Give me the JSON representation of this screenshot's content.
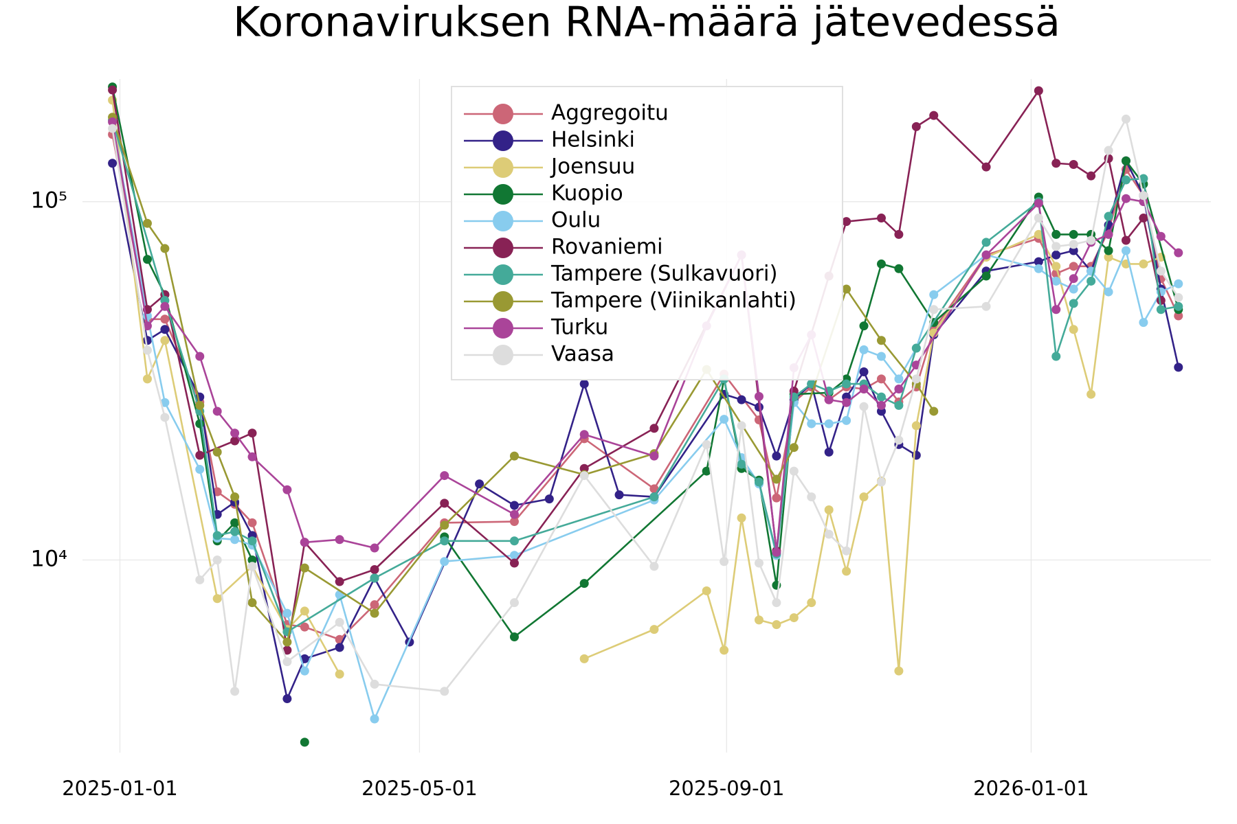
{
  "chart_data": {
    "type": "line",
    "title": "Koronaviruksen RNA-määrä jätevedessä",
    "xlim": [
      "2024-12-17",
      "2026-03-14"
    ],
    "xticks": [
      "2025-01-01",
      "2025-05-01",
      "2025-09-01",
      "2026-01-01"
    ],
    "ylim": [
      2900,
      220000
    ],
    "log_y": true,
    "yticks": [
      {
        "value": 10000,
        "label": "10⁴"
      },
      {
        "value": 100000,
        "label": "10⁵"
      }
    ],
    "grid": true,
    "legend": "top",
    "series": [
      {
        "name": "Aggregoitu",
        "color": "#cc6677",
        "x": [
          "2024-12-29",
          "2025-01-12",
          "2025-01-19",
          "2025-02-02",
          "2025-02-09",
          "2025-02-16",
          "2025-02-23",
          "2025-03-09",
          "2025-03-16",
          "2025-03-30",
          "2025-04-13",
          "2025-05-11",
          "2025-06-08",
          "2025-07-06",
          "2025-08-03",
          "2025-08-31",
          "2025-09-14",
          "2025-09-21",
          "2025-09-28",
          "2025-10-05",
          "2025-10-12",
          "2025-10-19",
          "2025-10-26",
          "2025-11-02",
          "2025-11-09",
          "2025-11-16",
          "2025-11-23",
          "2025-12-14",
          "2026-01-04",
          "2026-01-11",
          "2026-01-18",
          "2026-01-25",
          "2026-02-01",
          "2026-02-08",
          "2026-02-15",
          "2026-02-22",
          "2026-03-01"
        ],
        "values": [
          154000,
          47000,
          47000,
          27600,
          15500,
          14300,
          12700,
          6600,
          6500,
          6000,
          7500,
          12700,
          12800,
          21800,
          15800,
          33000,
          24600,
          14900,
          27600,
          30400,
          28000,
          30400,
          30000,
          32000,
          27600,
          30400,
          44000,
          71000,
          79000,
          63000,
          66000,
          66000,
          83000,
          123000,
          104000,
          61000,
          48000
        ]
      },
      {
        "name": "Helsinki",
        "color": "#332288",
        "x": [
          "2024-12-29",
          "2025-01-12",
          "2025-01-19",
          "2025-02-02",
          "2025-02-09",
          "2025-02-16",
          "2025-02-23",
          "2025-03-09",
          "2025-03-16",
          "2025-03-30",
          "2025-04-13",
          "2025-04-27",
          "2025-05-25",
          "2025-06-08",
          "2025-06-22",
          "2025-07-06",
          "2025-07-20",
          "2025-08-03",
          "2025-08-31",
          "2025-09-07",
          "2025-09-14",
          "2025-09-21",
          "2025-09-28",
          "2025-10-05",
          "2025-10-12",
          "2025-10-19",
          "2025-10-26",
          "2025-11-02",
          "2025-11-09",
          "2025-11-16",
          "2025-11-23",
          "2025-12-14",
          "2026-01-04",
          "2026-01-11",
          "2026-01-18",
          "2026-01-25",
          "2026-02-01",
          "2026-02-08",
          "2026-02-15",
          "2026-02-22",
          "2026-03-01"
        ],
        "values": [
          128000,
          41000,
          44000,
          28500,
          13400,
          14500,
          11700,
          4100,
          5300,
          5700,
          8900,
          5900,
          16300,
          14200,
          14800,
          31000,
          15200,
          15000,
          29000,
          28000,
          26700,
          19500,
          28000,
          31000,
          20000,
          28500,
          33500,
          26000,
          21000,
          19600,
          42500,
          64000,
          68000,
          71000,
          73000,
          64000,
          86000,
          130000,
          104000,
          57000,
          34500
        ]
      },
      {
        "name": "Joensuu",
        "color": "#ddcc77",
        "x": [
          "2024-12-29",
          "2025-01-12",
          "2025-01-19",
          "2025-02-09",
          "2025-02-23",
          "2025-03-09",
          "2025-03-16",
          "2025-03-30",
          "2025-04-13",
          "2025-07-06",
          "2025-08-03",
          "2025-08-24",
          "2025-08-31",
          "2025-09-07",
          "2025-09-14",
          "2025-09-21",
          "2025-09-28",
          "2025-10-05",
          "2025-10-12",
          "2025-10-19",
          "2025-10-26",
          "2025-11-02",
          "2025-11-09",
          "2025-11-16",
          "2025-11-23",
          "2025-12-14",
          "2026-01-04",
          "2026-01-11",
          "2026-01-18",
          "2026-01-25",
          "2026-02-01",
          "2026-02-08",
          "2026-02-15",
          "2026-02-22"
        ],
        "values": [
          192000,
          32000,
          41000,
          7800,
          9600,
          6400,
          7200,
          4800,
          null,
          5300,
          6400,
          8200,
          5600,
          13100,
          6800,
          6600,
          6900,
          7600,
          13800,
          9300,
          15000,
          16600,
          4900,
          23700,
          43000,
          70000,
          81000,
          66000,
          44000,
          29000,
          70000,
          67000,
          67000,
          70000
        ]
      },
      {
        "name": "Kuopio",
        "color": "#117733",
        "x": [
          "2024-12-29",
          "2025-01-12",
          "2025-01-19",
          "2025-02-02",
          "2025-02-09",
          "2025-02-16",
          "2025-02-23",
          "2025-03-02",
          "2025-03-16",
          "2025-03-30",
          "2025-05-11",
          "2025-06-08",
          "2025-07-06",
          "2025-08-24",
          "2025-08-31",
          "2025-09-07",
          "2025-09-14",
          "2025-09-21",
          "2025-09-28",
          "2025-10-12",
          "2025-10-19",
          "2025-10-26",
          "2025-11-02",
          "2025-11-09",
          "2025-11-23",
          "2025-12-14",
          "2026-01-04",
          "2026-01-11",
          "2026-01-18",
          "2026-01-25",
          "2026-02-01",
          "2026-02-08",
          "2026-02-15",
          "2026-03-01"
        ],
        "values": [
          209000,
          69000,
          55000,
          24000,
          11300,
          12700,
          10000,
          null,
          3100,
          null,
          11600,
          6100,
          8600,
          17700,
          32000,
          18000,
          16700,
          8500,
          29000,
          29300,
          32000,
          45000,
          67000,
          65000,
          46000,
          62000,
          103000,
          81000,
          81000,
          81000,
          73000,
          130000,
          112000,
          50000
        ]
      },
      {
        "name": "Oulu",
        "color": "#88ccee",
        "x": [
          "2024-12-29",
          "2025-01-12",
          "2025-01-19",
          "2025-02-02",
          "2025-02-09",
          "2025-02-16",
          "2025-02-23",
          "2025-03-09",
          "2025-03-16",
          "2025-03-30",
          "2025-04-13",
          "2025-05-11",
          "2025-06-08",
          "2025-08-03",
          "2025-08-31",
          "2025-09-07",
          "2025-09-14",
          "2025-09-21",
          "2025-09-28",
          "2025-10-05",
          "2025-10-12",
          "2025-10-19",
          "2025-10-26",
          "2025-11-02",
          "2025-11-09",
          "2025-11-16",
          "2025-11-23",
          "2025-12-14",
          "2026-01-04",
          "2026-01-11",
          "2026-01-18",
          "2026-01-25",
          "2026-02-01",
          "2026-02-08",
          "2026-02-15",
          "2026-02-22",
          "2026-03-01"
        ],
        "values": [
          168000,
          48000,
          27500,
          17900,
          11500,
          11400,
          11000,
          7100,
          4900,
          8000,
          3600,
          9900,
          10300,
          14700,
          24700,
          19300,
          16300,
          10300,
          27500,
          24000,
          24000,
          24500,
          38600,
          37000,
          32000,
          39000,
          55000,
          71000,
          65000,
          60000,
          57000,
          64000,
          56000,
          73000,
          46000,
          56000,
          59000
        ]
      },
      {
        "name": "Rovaniemi",
        "color": "#882255",
        "x": [
          "2024-12-29",
          "2025-01-12",
          "2025-01-19",
          "2025-02-02",
          "2025-02-16",
          "2025-02-23",
          "2025-03-09",
          "2025-03-16",
          "2025-03-30",
          "2025-04-13",
          "2025-05-11",
          "2025-06-08",
          "2025-07-06",
          "2025-08-03",
          "2025-09-07",
          "2025-09-21",
          "2025-09-28",
          "2025-10-12",
          "2025-10-19",
          "2025-11-02",
          "2025-11-09",
          "2025-11-16",
          "2025-11-23",
          "2025-12-14",
          "2026-01-04",
          "2026-01-11",
          "2026-01-18",
          "2026-01-25",
          "2026-02-01",
          "2026-02-08",
          "2026-02-15",
          "2026-02-22"
        ],
        "values": [
          205000,
          50000,
          55000,
          19600,
          21500,
          22600,
          5600,
          11200,
          8700,
          9400,
          14400,
          9800,
          18000,
          23300,
          71000,
          10600,
          29600,
          62000,
          88000,
          90000,
          81000,
          162000,
          174000,
          125000,
          204000,
          128000,
          127000,
          118000,
          132000,
          78000,
          90000,
          53000
        ]
      },
      {
        "name": "Tampere (Sulkavuori)",
        "color": "#44aa99",
        "x": [
          "2024-12-29",
          "2025-01-19",
          "2025-02-02",
          "2025-02-09",
          "2025-02-16",
          "2025-02-23",
          "2025-03-09",
          "2025-04-13",
          "2025-05-11",
          "2025-06-08",
          "2025-08-03",
          "2025-08-31",
          "2025-09-07",
          "2025-09-14",
          "2025-09-21",
          "2025-09-28",
          "2025-10-05",
          "2025-10-12",
          "2025-10-19",
          "2025-10-26",
          "2025-11-02",
          "2025-11-09",
          "2025-11-16",
          "2025-12-14",
          "2026-01-04",
          "2026-01-11",
          "2026-01-18",
          "2026-01-25",
          "2026-02-01",
          "2026-02-08",
          "2026-02-15",
          "2026-02-22",
          "2026-03-01"
        ],
        "values": [
          169000,
          53000,
          26000,
          11700,
          12000,
          11300,
          6300,
          8900,
          11300,
          11300,
          15000,
          32000,
          18500,
          16500,
          10400,
          28500,
          31000,
          29600,
          31000,
          31000,
          28500,
          27000,
          39000,
          77000,
          100000,
          37000,
          52000,
          60000,
          91000,
          115000,
          116000,
          50000,
          51000
        ]
      },
      {
        "name": "Tampere (Viinikanlahti)",
        "color": "#999933",
        "x": [
          "2024-12-29",
          "2025-01-12",
          "2025-01-19",
          "2025-02-02",
          "2025-02-09",
          "2025-02-16",
          "2025-02-23",
          "2025-03-09",
          "2025-03-16",
          "2025-04-13",
          "2025-05-11",
          "2025-06-08",
          "2025-07-06",
          "2025-08-03",
          "2025-08-24",
          "2025-09-21",
          "2025-09-28",
          "2025-10-19",
          "2025-11-02",
          "2025-11-16",
          "2025-11-23"
        ],
        "values": [
          172000,
          87000,
          74000,
          27000,
          20000,
          15000,
          7600,
          5900,
          9500,
          7100,
          12500,
          19500,
          17300,
          19800,
          34000,
          16800,
          20600,
          57000,
          41000,
          31000,
          26000
        ]
      },
      {
        "name": "Turku",
        "color": "#aa4499",
        "x": [
          "2024-12-29",
          "2025-01-12",
          "2025-01-19",
          "2025-02-02",
          "2025-02-09",
          "2025-02-16",
          "2025-02-23",
          "2025-03-09",
          "2025-03-16",
          "2025-03-30",
          "2025-04-13",
          "2025-05-11",
          "2025-06-08",
          "2025-07-06",
          "2025-08-03",
          "2025-08-24",
          "2025-09-07",
          "2025-09-14",
          "2025-09-21",
          "2025-09-28",
          "2025-10-05",
          "2025-10-12",
          "2025-10-19",
          "2025-10-26",
          "2025-11-02",
          "2025-11-09",
          "2025-11-16",
          "2025-12-14",
          "2026-01-04",
          "2026-01-11",
          "2026-01-18",
          "2026-01-25",
          "2026-02-01",
          "2026-02-08",
          "2026-02-15",
          "2026-02-22",
          "2026-03-01"
        ],
        "values": [
          167000,
          45000,
          51000,
          37000,
          26000,
          22600,
          19400,
          15700,
          11200,
          11400,
          10800,
          17200,
          13400,
          22400,
          19500,
          45000,
          71000,
          28600,
          10500,
          34400,
          42500,
          28000,
          27500,
          30000,
          27000,
          30000,
          35000,
          71000,
          99000,
          50000,
          61000,
          77000,
          81000,
          102000,
          100000,
          80000,
          72000
        ]
      },
      {
        "name": "Vaasa",
        "color": "#dddddd",
        "x": [
          "2024-12-29",
          "2025-01-12",
          "2025-01-19",
          "2025-02-02",
          "2025-02-09",
          "2025-02-16",
          "2025-02-23",
          "2025-03-09",
          "2025-03-30",
          "2025-04-13",
          "2025-05-11",
          "2025-06-08",
          "2025-07-06",
          "2025-08-03",
          "2025-08-24",
          "2025-08-31",
          "2025-09-07",
          "2025-09-14",
          "2025-09-21",
          "2025-09-28",
          "2025-10-05",
          "2025-10-12",
          "2025-10-19",
          "2025-10-26",
          "2025-11-02",
          "2025-11-09",
          "2025-11-16",
          "2025-11-23",
          "2025-12-14",
          "2026-01-04",
          "2026-01-11",
          "2026-01-18",
          "2026-01-25",
          "2026-02-01",
          "2026-02-08",
          "2026-02-15",
          "2026-02-22",
          "2026-03-01"
        ],
        "values": [
          160000,
          38500,
          25000,
          8800,
          10000,
          4300,
          9600,
          5200,
          6700,
          4500,
          4300,
          7600,
          17200,
          9600,
          21000,
          9900,
          23700,
          9800,
          7600,
          17700,
          15000,
          11800,
          10600,
          26800,
          16500,
          21600,
          32000,
          50000,
          51000,
          90000,
          75000,
          76000,
          78000,
          139000,
          170000,
          104000,
          64000,
          54000
        ]
      }
    ]
  }
}
